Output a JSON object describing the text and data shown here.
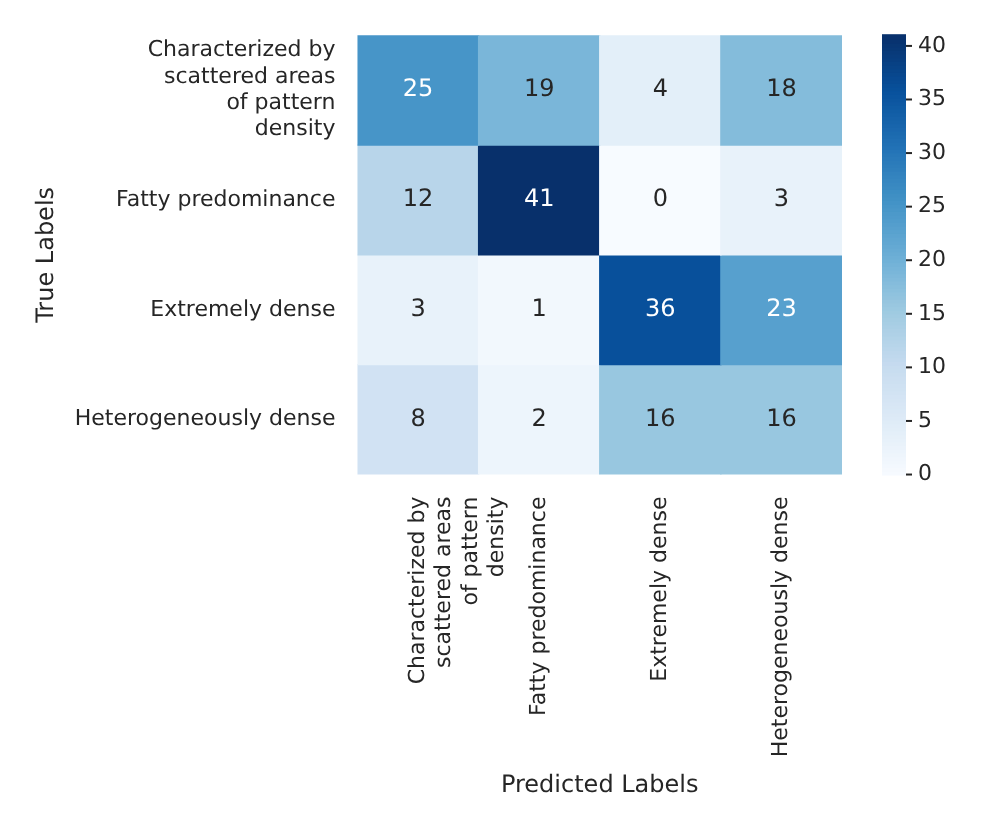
{
  "chart_data": {
    "type": "heatmap",
    "xlabel": "Predicted Labels",
    "ylabel": "True Labels",
    "categories": [
      "Characterized by scattered areas of pattern density",
      "Fatty predominance",
      "Extremely dense",
      "Heterogeneously dense"
    ],
    "y_categories": [
      "Characterized by scattered areas of pattern density",
      "Fatty predominance",
      "Extremely dense",
      "Heterogeneously dense"
    ],
    "cells": [
      [
        25,
        19,
        4,
        18
      ],
      [
        12,
        41,
        0,
        3
      ],
      [
        3,
        1,
        36,
        23
      ],
      [
        8,
        2,
        16,
        16
      ]
    ],
    "clim": [
      0,
      41
    ],
    "cticks": [
      0,
      5,
      10,
      15,
      20,
      25,
      30,
      35,
      40
    ],
    "data_labels": true,
    "grid": false,
    "legend": false
  }
}
